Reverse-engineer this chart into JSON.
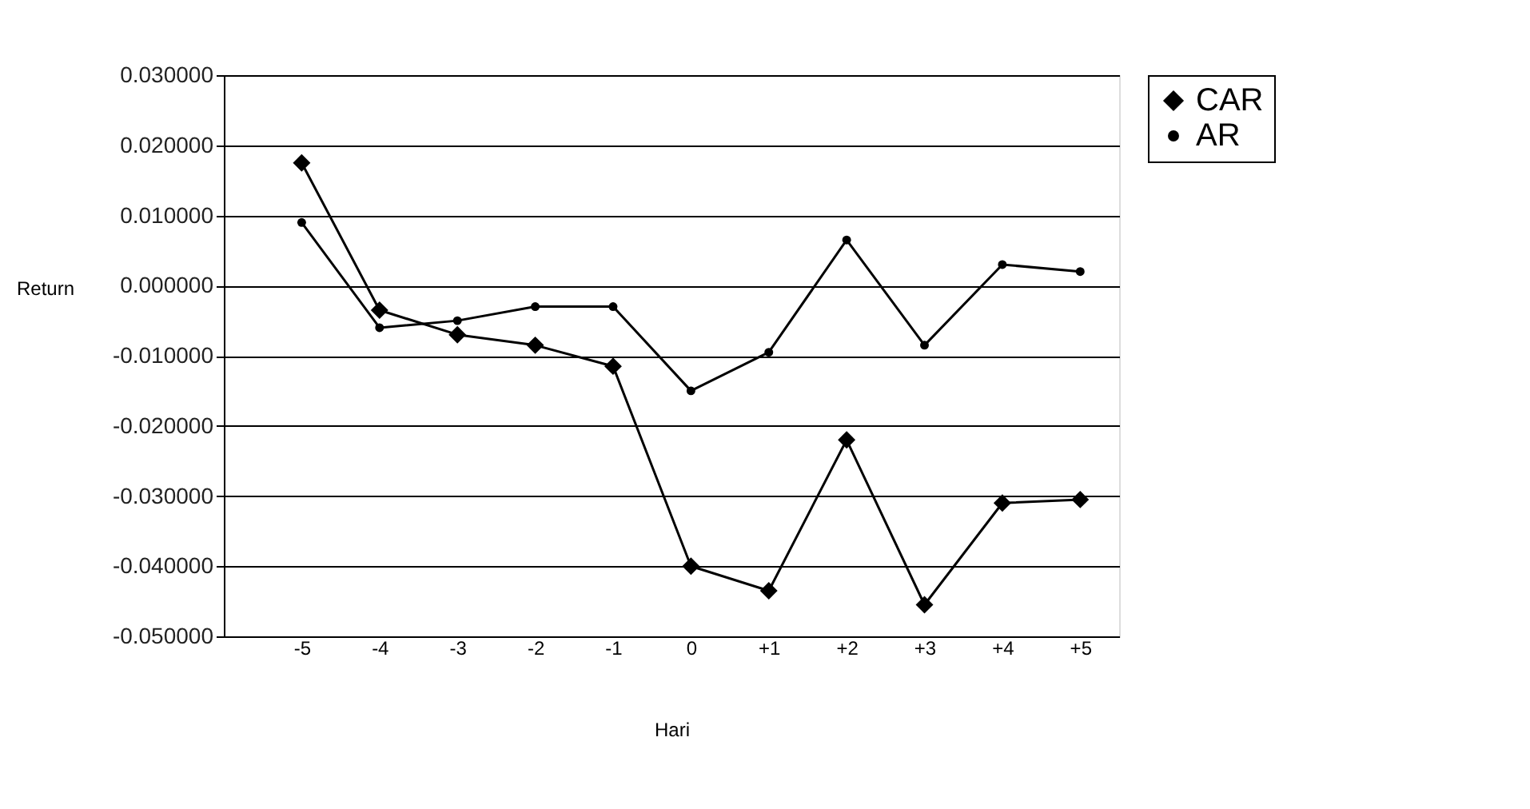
{
  "chart_data": {
    "type": "line",
    "xlabel": "Hari",
    "ylabel": "Return",
    "categories": [
      "-5",
      "-4",
      "-3",
      "-2",
      "-1",
      "0",
      "+1",
      "+2",
      "+3",
      "+4",
      "+5"
    ],
    "series": [
      {
        "name": "CAR",
        "color": "#000000",
        "marker": "diamond",
        "values": [
          0.0175,
          -0.0035,
          -0.007,
          -0.0085,
          -0.0115,
          -0.04,
          -0.0435,
          -0.022,
          -0.0455,
          -0.031,
          -0.0305
        ]
      },
      {
        "name": "AR",
        "color": "#000000",
        "marker": "circle",
        "values": [
          0.009,
          -0.006,
          -0.005,
          -0.003,
          -0.003,
          -0.015,
          -0.0095,
          0.0065,
          -0.0085,
          0.003,
          0.002
        ]
      }
    ],
    "ylim": [
      -0.05,
      0.03
    ],
    "yticks": [
      {
        "value": 0.03,
        "label": "0.030000"
      },
      {
        "value": 0.02,
        "label": "0.020000"
      },
      {
        "value": 0.01,
        "label": "0.010000"
      },
      {
        "value": 0,
        "label": "0.000000"
      },
      {
        "value": -0.01,
        "label": "-0.010000"
      },
      {
        "value": -0.02,
        "label": "-0.020000"
      },
      {
        "value": -0.03,
        "label": "-0.030000"
      },
      {
        "value": -0.04,
        "label": "-0.040000"
      },
      {
        "value": -0.05,
        "label": "-0.050000"
      }
    ],
    "grid": "y",
    "legend": "right",
    "line_style": "solid"
  }
}
